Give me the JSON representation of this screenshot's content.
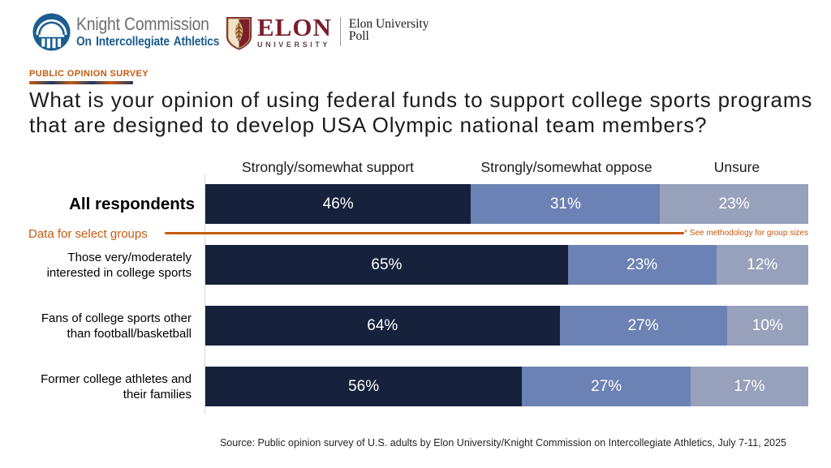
{
  "header": {
    "kc_name_line1": "Knight Commission",
    "kc_name_line2": "On Intercollegiate Athletics",
    "elon_wordmark": "ELON",
    "elon_university": "UNIVERSITY",
    "elon_poll_line1": "Elon University",
    "elon_poll_line2": "Poll"
  },
  "eyebrow": "PUBLIC OPINION SURVEY",
  "title_lines": [
    "What is your opinion of using federal funds to support college sports programs",
    "that are designed to develop USA Olympic national team members?"
  ],
  "group_note": {
    "label": "Data for select groups",
    "note": "* See methodology for group sizes"
  },
  "source": "Source: Public opinion survey of U.S. adults by Elon University/Knight Commission on Intercollegiate Athletics, July 7-11, 2025",
  "colors": {
    "support": "#16223c",
    "oppose": "#6c82b4",
    "unsure": "#98a1bb",
    "accent_orange": "#c55a11",
    "kc_blue": "#1b5d90",
    "elon_maroon": "#7a1f2b"
  },
  "chart_data": {
    "type": "bar",
    "orientation": "horizontal",
    "stacked": true,
    "series_names": [
      "Strongly/somewhat support",
      "Strongly/somewhat oppose",
      "Unsure"
    ],
    "rows": [
      {
        "label_lines": [
          "All respondents"
        ],
        "emphasis": true,
        "values": [
          46,
          31,
          23
        ]
      },
      {
        "label_lines": [
          "Those very/moderately",
          "interested in college sports"
        ],
        "emphasis": false,
        "values": [
          65,
          23,
          12
        ]
      },
      {
        "label_lines": [
          "Fans of college sports other",
          "than football/basketball"
        ],
        "emphasis": false,
        "values": [
          64,
          27,
          10
        ]
      },
      {
        "label_lines": [
          "Former college athletes and",
          "their families"
        ],
        "emphasis": false,
        "values": [
          56,
          27,
          17
        ]
      }
    ],
    "value_suffix": "%"
  }
}
